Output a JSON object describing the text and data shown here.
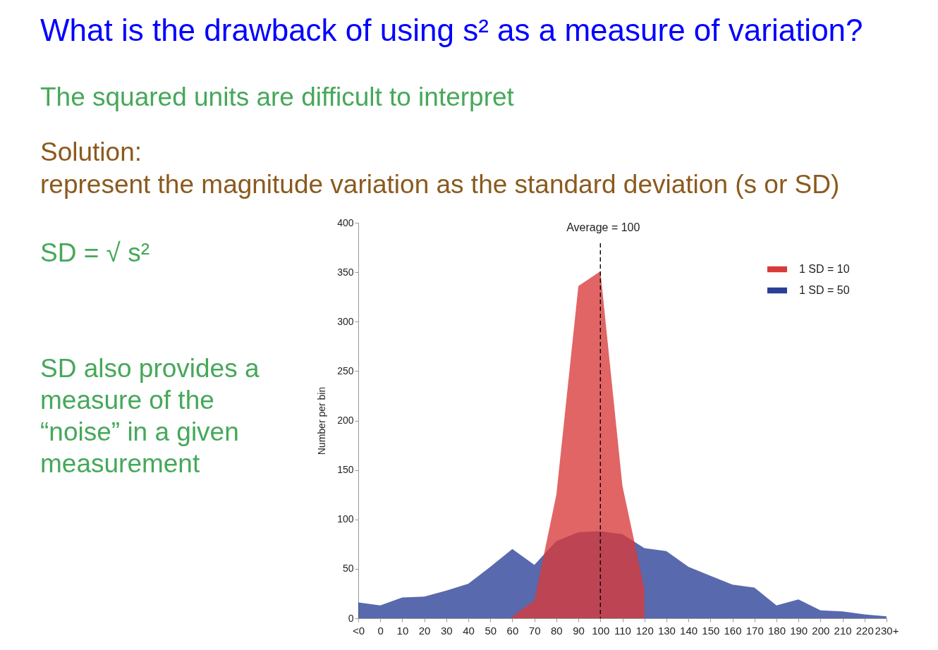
{
  "chart_data": {
    "type": "area",
    "title": "What is the drawback of using s² as a measure of variation?",
    "subtitle": "The squared units are difficult to interpret",
    "annotations": [
      "Solution:",
      "represent the magnitude variation as the standard deviation (s or SD)",
      "SD = √ s²",
      "SD also provides a measure of the “noise” in a given measurement"
    ],
    "ylabel": "Number per bin",
    "categories": [
      "<0",
      "0",
      "10",
      "20",
      "30",
      "40",
      "50",
      "60",
      "70",
      "80",
      "90",
      "100",
      "110",
      "120",
      "130",
      "140",
      "150",
      "160",
      "170",
      "180",
      "190",
      "200",
      "210",
      "220",
      "230+"
    ],
    "series": [
      {
        "name": "1 SD = 10",
        "color": "#d93a3a",
        "values": [
          null,
          null,
          null,
          null,
          null,
          null,
          null,
          2,
          18,
          125,
          336,
          351,
          134,
          30,
          null,
          null,
          null,
          null,
          null,
          null,
          null,
          null,
          null,
          null,
          null
        ]
      },
      {
        "name": "1 SD = 50",
        "color": "#2a3f96",
        "values": [
          16,
          13,
          21,
          22,
          28,
          35,
          52,
          70,
          54,
          78,
          87,
          88,
          85,
          71,
          68,
          52,
          43,
          34,
          31,
          13,
          19,
          8,
          7,
          4,
          2
        ]
      }
    ],
    "ylim": [
      0,
      400
    ],
    "yticks": [
      0,
      50,
      100,
      150,
      200,
      250,
      300,
      350,
      400
    ],
    "ref_lines": [
      {
        "axis": "x",
        "value": "100",
        "label": "Average = 100",
        "line_style": "dashed"
      }
    ],
    "legend": "top right",
    "grid": false
  }
}
